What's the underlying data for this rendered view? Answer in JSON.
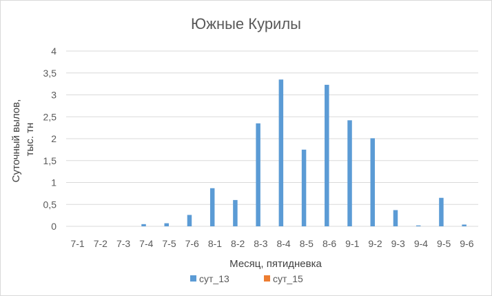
{
  "chart_data": {
    "type": "bar",
    "title": "Южные Курилы",
    "xlabel": "Месяц, пятидневка",
    "ylabel_lines": [
      "Суточный вылов,",
      "тыс. тн"
    ],
    "ylim": [
      0,
      4
    ],
    "yticks": [
      0,
      0.5,
      1,
      1.5,
      2,
      2.5,
      3,
      3.5,
      4
    ],
    "ytick_labels": [
      "0",
      "0,5",
      "1",
      "1,5",
      "2",
      "2,5",
      "3",
      "3,5",
      "4"
    ],
    "grid": true,
    "legend_position": "bottom",
    "categories": [
      "7-1",
      "7-2",
      "7-3",
      "7-4",
      "7-5",
      "7-6",
      "8-1",
      "8-2",
      "8-3",
      "8-4",
      "8-5",
      "8-6",
      "9-1",
      "9-2",
      "9-3",
      "9-4",
      "9-5",
      "9-6"
    ],
    "series": [
      {
        "name": "сут_13",
        "color": "#5b9bd5",
        "values": [
          0,
          0,
          0,
          0.05,
          0.07,
          0.26,
          0.87,
          0.6,
          2.35,
          3.35,
          1.75,
          3.23,
          2.42,
          2.01,
          0.37,
          0.02,
          0.65,
          0.04
        ]
      },
      {
        "name": "сут_15",
        "color": "#ed7d31",
        "values": [
          0,
          0,
          0,
          0,
          0,
          0,
          0,
          0,
          0,
          0,
          0,
          0,
          0,
          0,
          0,
          0,
          0,
          0
        ]
      }
    ]
  }
}
